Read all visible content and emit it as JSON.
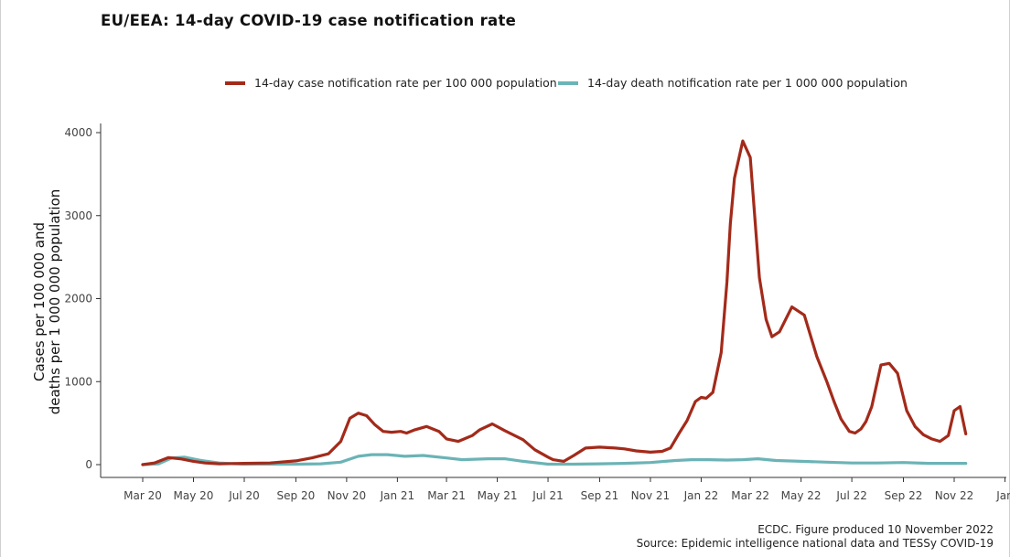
{
  "chart_data": {
    "type": "line",
    "title": "EU/EEA: 14-day COVID-19 case notification rate",
    "ylabel": "Cases per 100 000 and deaths per 1 000 000 population",
    "ylabel_lines": [
      "Cases per 100 000 and",
      "deaths per 1 000 000 population"
    ],
    "ylim": [
      0,
      4000
    ],
    "yticks": [
      0,
      1000,
      2000,
      3000,
      4000
    ],
    "xticks": [
      "Mar 20",
      "May 20",
      "Jul 20",
      "Sep 20",
      "Nov 20",
      "Jan 21",
      "Mar 21",
      "May 21",
      "Jul 21",
      "Sep 21",
      "Nov 21",
      "Jan 22",
      "Mar 22",
      "May 22",
      "Jul 22",
      "Sep 22",
      "Nov 22",
      "Jan"
    ],
    "grid": false,
    "legend_position": "top",
    "series": [
      {
        "name": "14-day case notification rate per 100 000 population",
        "color": "#a32a1a",
        "x": [
          "2020-03-01",
          "2020-03-15",
          "2020-04-01",
          "2020-04-15",
          "2020-05-01",
          "2020-05-15",
          "2020-06-01",
          "2020-07-01",
          "2020-08-01",
          "2020-09-01",
          "2020-09-20",
          "2020-10-10",
          "2020-10-25",
          "2020-11-05",
          "2020-11-15",
          "2020-11-25",
          "2020-12-05",
          "2020-12-15",
          "2020-12-25",
          "2021-01-05",
          "2021-01-12",
          "2021-01-22",
          "2021-02-05",
          "2021-02-20",
          "2021-03-01",
          "2021-03-15",
          "2021-04-01",
          "2021-04-10",
          "2021-04-25",
          "2021-05-10",
          "2021-06-01",
          "2021-06-15",
          "2021-07-01",
          "2021-07-07",
          "2021-07-20",
          "2021-08-01",
          "2021-08-15",
          "2021-09-01",
          "2021-09-20",
          "2021-10-01",
          "2021-10-15",
          "2021-11-01",
          "2021-11-15",
          "2021-11-25",
          "2021-12-05",
          "2021-12-15",
          "2021-12-25",
          "2022-01-01",
          "2022-01-07",
          "2022-01-15",
          "2022-01-25",
          "2022-02-01",
          "2022-02-05",
          "2022-02-10",
          "2022-02-20",
          "2022-03-01",
          "2022-03-07",
          "2022-03-12",
          "2022-03-20",
          "2022-03-27",
          "2022-04-05",
          "2022-04-20",
          "2022-05-05",
          "2022-05-20",
          "2022-06-01",
          "2022-06-10",
          "2022-06-18",
          "2022-06-28",
          "2022-07-05",
          "2022-07-12",
          "2022-07-18",
          "2022-07-25",
          "2022-08-05",
          "2022-08-15",
          "2022-08-25",
          "2022-09-05",
          "2022-09-15",
          "2022-09-25",
          "2022-10-05",
          "2022-10-15",
          "2022-10-25",
          "2022-11-01",
          "2022-11-08",
          "2022-11-15"
        ],
        "values": [
          0,
          20,
          85,
          70,
          40,
          20,
          10,
          15,
          20,
          45,
          80,
          130,
          280,
          560,
          620,
          590,
          480,
          400,
          390,
          400,
          380,
          420,
          460,
          400,
          310,
          280,
          350,
          420,
          490,
          410,
          300,
          180,
          90,
          60,
          40,
          110,
          200,
          210,
          200,
          190,
          165,
          150,
          160,
          200,
          370,
          530,
          760,
          810,
          800,
          870,
          1350,
          2200,
          2900,
          3450,
          3900,
          3700,
          2900,
          2250,
          1750,
          1540,
          1600,
          1900,
          1800,
          1300,
          1000,
          750,
          550,
          400,
          380,
          430,
          520,
          700,
          1200,
          1220,
          1100,
          650,
          460,
          360,
          310,
          280,
          350,
          650,
          700,
          370
        ]
      },
      {
        "name": "14-day death notification rate per 1 000 000 population",
        "color": "#6bb3b6",
        "x": [
          "2020-03-01",
          "2020-03-20",
          "2020-04-05",
          "2020-04-20",
          "2020-05-10",
          "2020-06-01",
          "2020-07-01",
          "2020-08-01",
          "2020-09-01",
          "2020-10-01",
          "2020-10-25",
          "2020-11-15",
          "2020-12-01",
          "2020-12-20",
          "2021-01-10",
          "2021-02-01",
          "2021-03-01",
          "2021-03-20",
          "2021-04-20",
          "2021-05-10",
          "2021-06-01",
          "2021-07-01",
          "2021-08-01",
          "2021-09-01",
          "2021-10-01",
          "2021-11-01",
          "2021-12-01",
          "2021-12-20",
          "2022-01-10",
          "2022-02-01",
          "2022-02-20",
          "2022-03-10",
          "2022-04-01",
          "2022-05-01",
          "2022-06-01",
          "2022-07-01",
          "2022-08-01",
          "2022-09-01",
          "2022-10-01",
          "2022-11-01",
          "2022-11-15"
        ],
        "values": [
          0,
          10,
          80,
          90,
          50,
          20,
          5,
          5,
          5,
          10,
          30,
          100,
          120,
          120,
          100,
          110,
          80,
          60,
          70,
          70,
          40,
          5,
          5,
          10,
          15,
          25,
          50,
          60,
          60,
          55,
          60,
          70,
          50,
          40,
          30,
          20,
          20,
          25,
          15,
          15,
          15
        ]
      }
    ]
  },
  "caption_lines": [
    "ECDC. Figure produced 10 November 2022",
    "Source: Epidemic intelligence national data and TESSy COVID-19"
  ]
}
